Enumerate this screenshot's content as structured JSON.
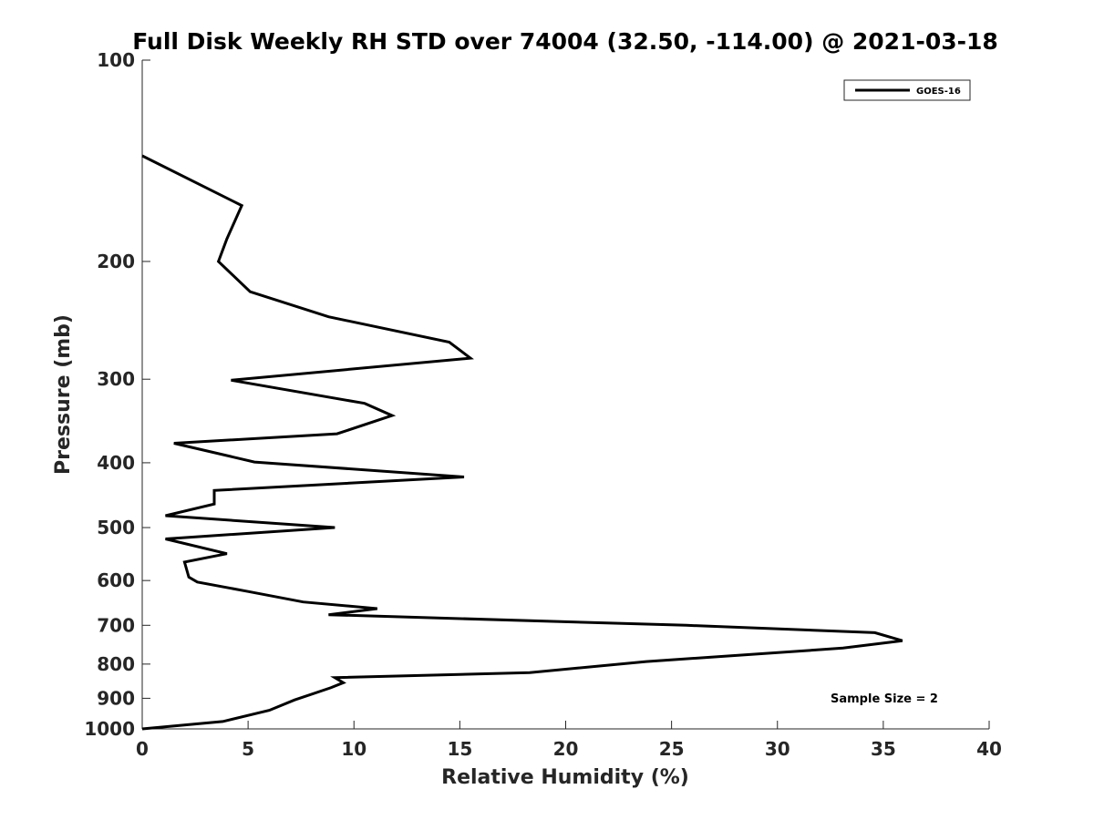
{
  "chart_data": {
    "type": "line",
    "title": "Full Disk Weekly RH STD over 74004 (32.50, -114.00) @ 2021-03-18",
    "xlabel": "Relative Humidity (%)",
    "ylabel": "Pressure (mb)",
    "xlim": [
      0,
      40
    ],
    "ylim": [
      100,
      1000
    ],
    "y_scale": "log",
    "y_reversed": true,
    "x_ticks": [
      0,
      5,
      10,
      15,
      20,
      25,
      30,
      35,
      40
    ],
    "y_ticks": [
      100,
      200,
      300,
      400,
      500,
      600,
      700,
      800,
      900,
      1000
    ],
    "grid": false,
    "legend_position": "top-right",
    "annotation": "Sample Size = 2",
    "series": [
      {
        "name": "GOES-16",
        "color": "#000000",
        "points": [
          [
            0.0,
            1000
          ],
          [
            3.8,
            975
          ],
          [
            6.0,
            938
          ],
          [
            7.2,
            905
          ],
          [
            8.9,
            868
          ],
          [
            9.5,
            853
          ],
          [
            9.1,
            838
          ],
          [
            18.3,
            824
          ],
          [
            23.8,
            793
          ],
          [
            29.0,
            773
          ],
          [
            33.1,
            757
          ],
          [
            35.9,
            738
          ],
          [
            34.6,
            718
          ],
          [
            25.7,
            700
          ],
          [
            8.8,
            675
          ],
          [
            11.1,
            661
          ],
          [
            7.6,
            646
          ],
          [
            5.0,
            623
          ],
          [
            2.6,
            603
          ],
          [
            2.2,
            593
          ],
          [
            2.0,
            563
          ],
          [
            4.0,
            547
          ],
          [
            1.1,
            520
          ],
          [
            9.1,
            500
          ],
          [
            1.1,
            480
          ],
          [
            3.4,
            461
          ],
          [
            3.4,
            440
          ],
          [
            15.2,
            420
          ],
          [
            5.3,
            399
          ],
          [
            1.5,
            374
          ],
          [
            9.2,
            362
          ],
          [
            11.8,
            340
          ],
          [
            10.5,
            326
          ],
          [
            4.2,
            301
          ],
          [
            15.5,
            279
          ],
          [
            14.5,
            264
          ],
          [
            8.8,
            242
          ],
          [
            5.1,
            222
          ],
          [
            3.6,
            200
          ],
          [
            4.0,
            185
          ],
          [
            4.7,
            165
          ],
          [
            0.0,
            139
          ]
        ]
      }
    ]
  }
}
